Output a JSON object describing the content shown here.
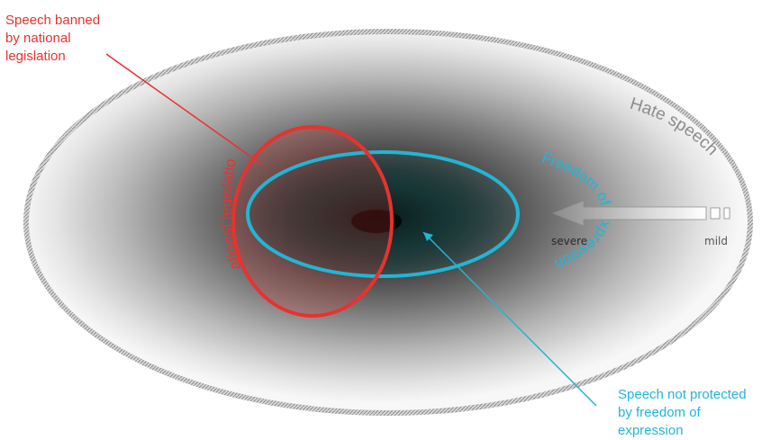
{
  "labels": {
    "hate_speech": "Hate speech",
    "national_legislation": "National legislation",
    "freedom_of_expression": "Freedom of expression",
    "speech_banned": "Speech banned\nby national\nlegislation",
    "speech_not_protected": "Speech not protected\nby freedom of\nexpression",
    "severe": "severe",
    "mild": "mild"
  },
  "colors": {
    "red": "#e8322f",
    "blue": "#22b5d6",
    "gray_text": "#8c8c8c",
    "arrow": "#a9a9a9"
  }
}
